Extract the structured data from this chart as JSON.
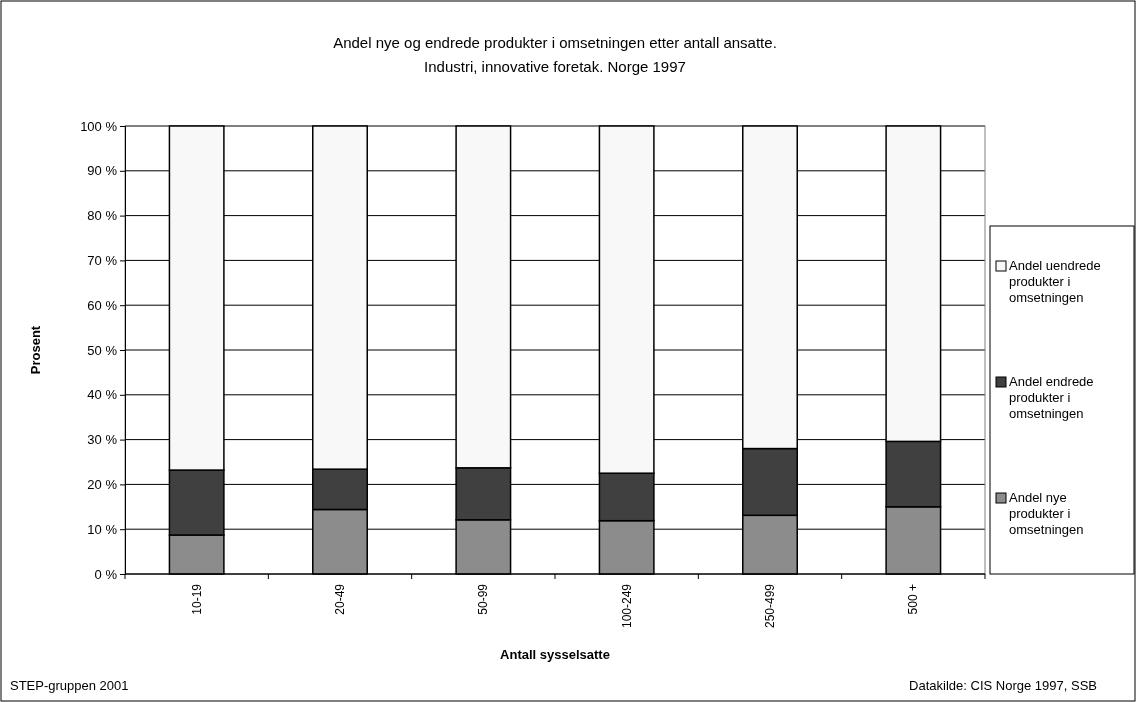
{
  "chart_data": {
    "type": "bar",
    "stacked": true,
    "title": "Andel nye og endrede produkter i omsetningen etter antall ansatte.\nIndustri, innovative foretak. Norge 1997",
    "xlabel": "Antall sysselsatte",
    "ylabel": "Prosent",
    "categories": [
      "10-19",
      "20-49",
      "50-99",
      "100-249",
      "250-499",
      "500 +"
    ],
    "series": [
      {
        "name": "Andel nye produkter i omsetningen",
        "color": "#8c8c8c",
        "values": [
          8.7,
          14.4,
          12.1,
          11.9,
          13.1,
          15.0
        ]
      },
      {
        "name": "Andel endrede produkter i omsetningen",
        "color": "#404040",
        "values": [
          14.5,
          9.0,
          11.6,
          10.6,
          14.9,
          14.6
        ]
      },
      {
        "name": "Andel uendrede produkter i omsetningen",
        "color": "#f8f8f8",
        "values": [
          76.8,
          76.6,
          76.3,
          77.5,
          72.0,
          70.4
        ]
      }
    ],
    "ylim": [
      0,
      100
    ],
    "yticks": [
      {
        "value": 0,
        "label": "0 %"
      },
      {
        "value": 10,
        "label": "10 %"
      },
      {
        "value": 20,
        "label": "20 %"
      },
      {
        "value": 30,
        "label": "30 %"
      },
      {
        "value": 40,
        "label": "40 %"
      },
      {
        "value": 50,
        "label": "50 %"
      },
      {
        "value": 60,
        "label": "60 %"
      },
      {
        "value": 70,
        "label": "70 %"
      },
      {
        "value": 80,
        "label": "80 %"
      },
      {
        "value": 90,
        "label": "90 %"
      },
      {
        "value": 100,
        "label": "100 %"
      }
    ],
    "grid": "y",
    "legend": "right",
    "annotations": [
      "STEP-gruppen 2001",
      "Datakilde: CIS Norge 1997, SSB"
    ]
  }
}
